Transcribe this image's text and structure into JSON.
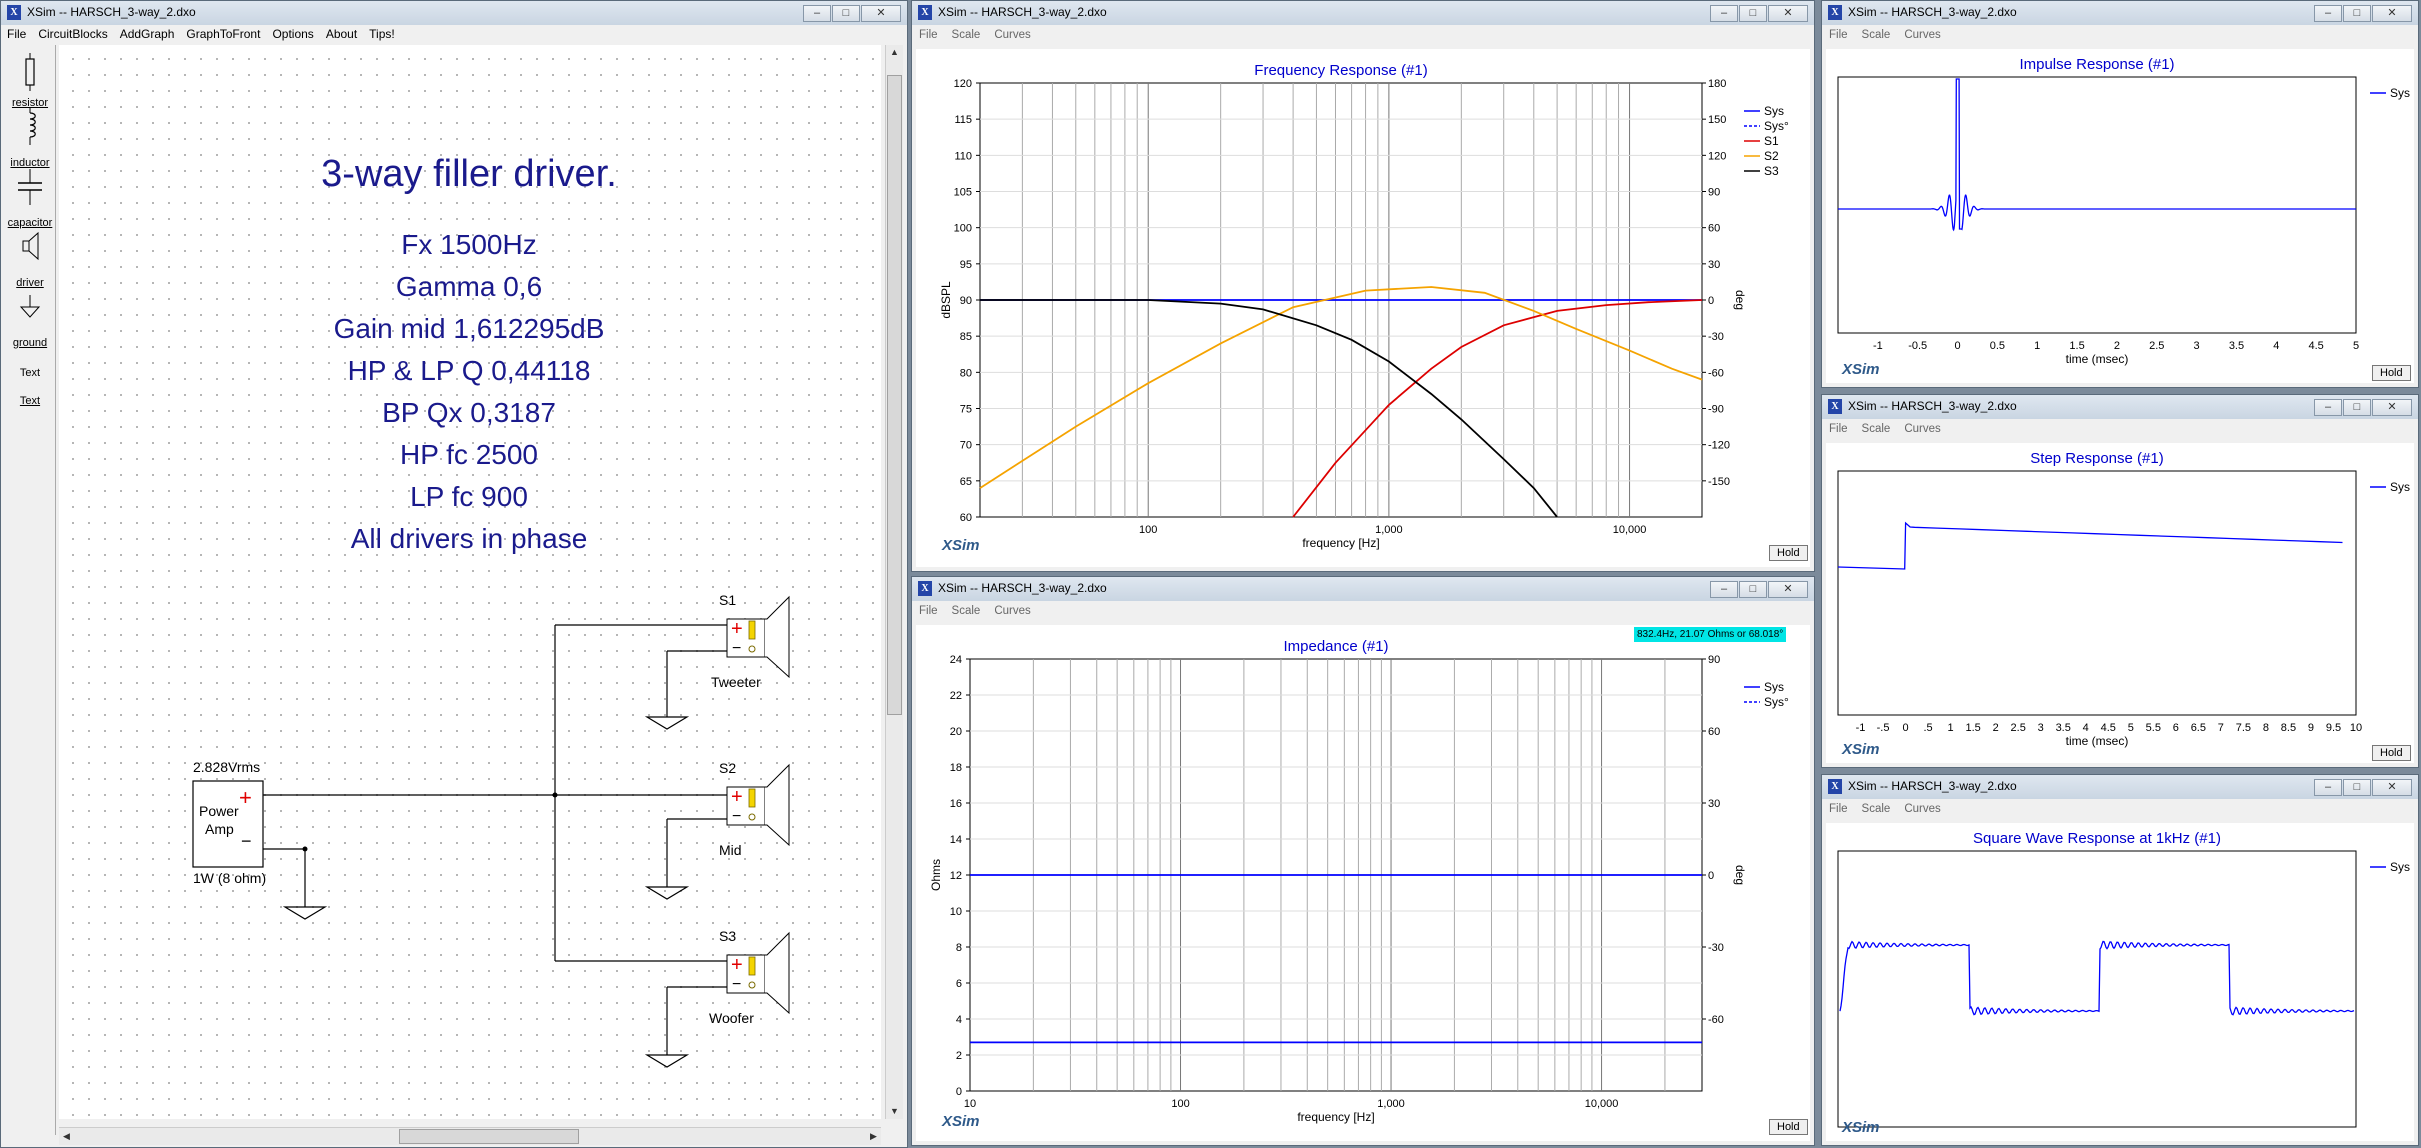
{
  "main": {
    "title": "XSim -- HARSCH_3-way_2.dxo",
    "menu": [
      "File",
      "CircuitBlocks",
      "AddGraph",
      "GraphToFront",
      "Options",
      "About",
      "Tips!"
    ],
    "tools": [
      "resistor",
      "inductor",
      "capacitor",
      "driver",
      "ground",
      "Text",
      "Text"
    ],
    "notes": [
      "3-way filler driver.",
      "Fx 1500Hz",
      "Gamma 0,6",
      "Gain mid 1,612295dB",
      "HP & LP Q 0,44118",
      "BP Qx 0,3187",
      "HP fc 2500",
      "LP fc 900",
      "All drivers in phase"
    ],
    "amp": {
      "voltage": "2.828Vrms",
      "label1": "Power",
      "label2": "Amp",
      "plus": "+",
      "minus": "−",
      "power": "1W (8 ohm)"
    },
    "drivers": [
      {
        "id": "S1",
        "role": "Tweeter"
      },
      {
        "id": "S2",
        "role": "Mid"
      },
      {
        "id": "S3",
        "role": "Woofer"
      }
    ]
  },
  "graph_menu": [
    "File",
    "Scale",
    "Curves"
  ],
  "windows": {
    "freq": {
      "title": "XSim -- HARSCH_3-way_2.dxo"
    },
    "imp": {
      "title": "XSim -- HARSCH_3-way_2.dxo",
      "readout": "832.4Hz, 21.07 Ohms or 68.018°"
    },
    "impulse": {
      "title": "XSim -- HARSCH_3-way_2.dxo"
    },
    "step": {
      "title": "XSim -- HARSCH_3-way_2.dxo"
    },
    "square": {
      "title": "XSim -- HARSCH_3-way_2.dxo"
    }
  },
  "brand": "XSim",
  "hold_label": "Hold",
  "window_buttons": {
    "minimize": "–",
    "maximize": "□",
    "close": "✕"
  },
  "colors": {
    "sys": "#0000ff",
    "s1": "#dd0000",
    "s2": "#f5a300",
    "s3": "#000000",
    "title_blue": "#0000cc",
    "note_blue": "#1a1a8c"
  },
  "chart_data": [
    {
      "id": "freq",
      "type": "line",
      "title": "Frequency Response (#1)",
      "xlabel": "frequency [Hz]",
      "ylabel": "dBSPL",
      "y2label": "deg",
      "xscale": "log",
      "xlim": [
        20,
        20000
      ],
      "ylim": [
        60,
        120
      ],
      "y2lim": [
        -180,
        180
      ],
      "xticks": [
        100,
        1000,
        10000
      ],
      "xticklabels": [
        "100",
        "1,000",
        "10,000"
      ],
      "yticks": [
        60,
        65,
        70,
        75,
        80,
        85,
        90,
        95,
        100,
        105,
        110,
        115,
        120
      ],
      "y2ticks": [
        -150,
        -120,
        -90,
        -60,
        -30,
        0,
        30,
        60,
        90,
        120,
        150,
        180
      ],
      "legend": "top-right",
      "series": [
        {
          "name": "Sys",
          "color": "#0000ff",
          "x": [
            20,
            20000
          ],
          "values": [
            90,
            90
          ]
        },
        {
          "name": "Sys°",
          "color": "#0000ff",
          "dashed": true,
          "x": [],
          "values": []
        },
        {
          "name": "S1",
          "color": "#dd0000",
          "x": [
            400,
            600,
            800,
            1000,
            1500,
            2000,
            3000,
            5000,
            8000,
            12000,
            20000
          ],
          "values": [
            60,
            67.5,
            72,
            75.5,
            80.5,
            83.5,
            86.5,
            88.5,
            89.3,
            89.7,
            90
          ]
        },
        {
          "name": "S2",
          "color": "#f5a300",
          "x": [
            20,
            50,
            100,
            200,
            400,
            800,
            1500,
            2500,
            4000,
            6000,
            10000,
            15000,
            20000
          ],
          "values": [
            64,
            72.5,
            78.5,
            84,
            89,
            91.3,
            91.8,
            91,
            88.5,
            86,
            83,
            80.5,
            79
          ]
        },
        {
          "name": "S3",
          "color": "#000000",
          "x": [
            20,
            100,
            200,
            300,
            500,
            700,
            1000,
            1500,
            2000,
            3000,
            4000,
            5000
          ],
          "values": [
            90,
            90,
            89.5,
            88.7,
            86.5,
            84.5,
            81.5,
            77,
            73.5,
            68,
            64,
            60
          ]
        }
      ]
    },
    {
      "id": "imp",
      "type": "line",
      "title": "Impedance (#1)",
      "xlabel": "frequency [Hz]",
      "ylabel": "Ohms",
      "y2label": "deg",
      "xscale": "log",
      "xlim": [
        10,
        30000
      ],
      "ylim": [
        0,
        24
      ],
      "y2lim": [
        -90,
        90
      ],
      "xticks": [
        10,
        100,
        1000,
        10000
      ],
      "xticklabels": [
        "10",
        "100",
        "1,000",
        "10,000"
      ],
      "yticks": [
        0,
        2,
        4,
        6,
        8,
        10,
        12,
        14,
        16,
        18,
        20,
        22,
        24
      ],
      "y2ticks": [
        -60,
        -30,
        0,
        30,
        60,
        90
      ],
      "legend": "top-right",
      "series": [
        {
          "name": "Sys",
          "color": "#0000ff",
          "x": [
            10,
            30000
          ],
          "values": [
            2.7,
            2.7
          ]
        },
        {
          "name": "Sys°",
          "color": "#0000ff",
          "dashed": true,
          "x": [
            10,
            30000
          ],
          "values": [
            12,
            12
          ]
        }
      ]
    },
    {
      "id": "impulse",
      "type": "line",
      "title": "Impulse Response (#1)",
      "xlabel": "time (msec)",
      "xlim": [
        -1.5,
        5
      ],
      "xticks": [
        -1,
        -0.5,
        0,
        0.5,
        1,
        1.5,
        2,
        2.5,
        3,
        3.5,
        4,
        4.5,
        5
      ],
      "xticklabels": [
        "-1",
        "-0.5",
        "0",
        "0.5",
        "1",
        "1.5",
        "2",
        "2.5",
        "3",
        "3.5",
        "4",
        "4.5",
        "5"
      ],
      "legend": "top-right",
      "series": [
        {
          "name": "Sys",
          "color": "#0000ff"
        }
      ]
    },
    {
      "id": "step",
      "type": "line",
      "title": "Step Response (#1)",
      "xlabel": "time (msec)",
      "xlim": [
        -1.5,
        10
      ],
      "xticks": [
        -1,
        -0.5,
        0,
        0.5,
        1,
        1.5,
        2,
        2.5,
        3,
        3.5,
        4,
        4.5,
        5,
        5.5,
        6,
        6.5,
        7,
        7.5,
        8,
        8.5,
        9,
        9.5,
        10
      ],
      "xticklabels": [
        "-1",
        "-.5",
        "0",
        ".5",
        "1",
        "1.5",
        "2",
        "2.5",
        "3",
        "3.5",
        "4",
        "4.5",
        "5",
        "5.5",
        "6",
        "6.5",
        "7",
        "7.5",
        "8",
        "8.5",
        "9",
        "9.5",
        "10"
      ],
      "legend": "top-right",
      "series": [
        {
          "name": "Sys",
          "color": "#0000ff"
        }
      ]
    },
    {
      "id": "square",
      "type": "line",
      "title": "Square Wave Response at 1kHz (#1)",
      "legend": "top-right",
      "series": [
        {
          "name": "Sys",
          "color": "#0000ff"
        }
      ]
    }
  ]
}
